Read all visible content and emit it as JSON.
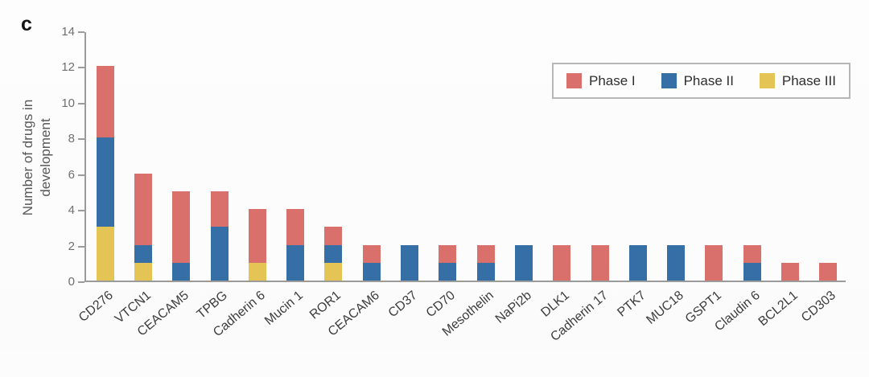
{
  "chart_data": {
    "type": "bar",
    "stacked": true,
    "panel_label": "c",
    "title": "",
    "xlabel": "",
    "ylabel": "Number of drugs in development",
    "ylabel_lines": [
      "Number of drugs in",
      "development"
    ],
    "ylim": [
      0,
      14
    ],
    "yticks": [
      0,
      2,
      4,
      6,
      8,
      10,
      12,
      14
    ],
    "grid": false,
    "legend_position": "top-right",
    "categories": [
      "CD276",
      "VTCN1",
      "CEACAM5",
      "TPBG",
      "Cadherin 6",
      "Mucin 1",
      "ROR1",
      "CEACAM6",
      "CD37",
      "CD70",
      "Mesothelin",
      "NaPi2b",
      "DLK1",
      "Cadherin 17",
      "PTK7",
      "MUC18",
      "GSPT1",
      "Claudin 6",
      "BCL2L1",
      "CD303"
    ],
    "series": [
      {
        "name": "Phase I",
        "color": "#d9706c",
        "values": [
          4,
          4,
          4,
          2,
          3,
          2,
          1,
          1,
          0,
          1,
          1,
          0,
          2,
          2,
          0,
          0,
          2,
          1,
          1,
          1
        ]
      },
      {
        "name": "Phase II",
        "color": "#366fa6",
        "values": [
          5,
          1,
          1,
          3,
          0,
          2,
          1,
          1,
          2,
          1,
          1,
          2,
          0,
          0,
          2,
          2,
          0,
          1,
          0,
          0
        ]
      },
      {
        "name": "Phase III",
        "color": "#e4c455",
        "values": [
          3,
          1,
          0,
          0,
          1,
          0,
          1,
          0,
          0,
          0,
          0,
          0,
          0,
          0,
          0,
          0,
          0,
          0,
          0,
          0
        ]
      }
    ],
    "stack_order_bottom_to_top": [
      "Phase III",
      "Phase II",
      "Phase I"
    ],
    "totals": [
      12,
      6,
      5,
      5,
      4,
      4,
      3,
      2,
      2,
      2,
      2,
      2,
      2,
      2,
      2,
      2,
      2,
      2,
      1,
      1
    ]
  },
  "legend": {
    "entries": [
      {
        "label": "Phase I",
        "color": "#d9706c"
      },
      {
        "label": "Phase II",
        "color": "#366fa6"
      },
      {
        "label": "Phase III",
        "color": "#e4c455"
      }
    ]
  }
}
